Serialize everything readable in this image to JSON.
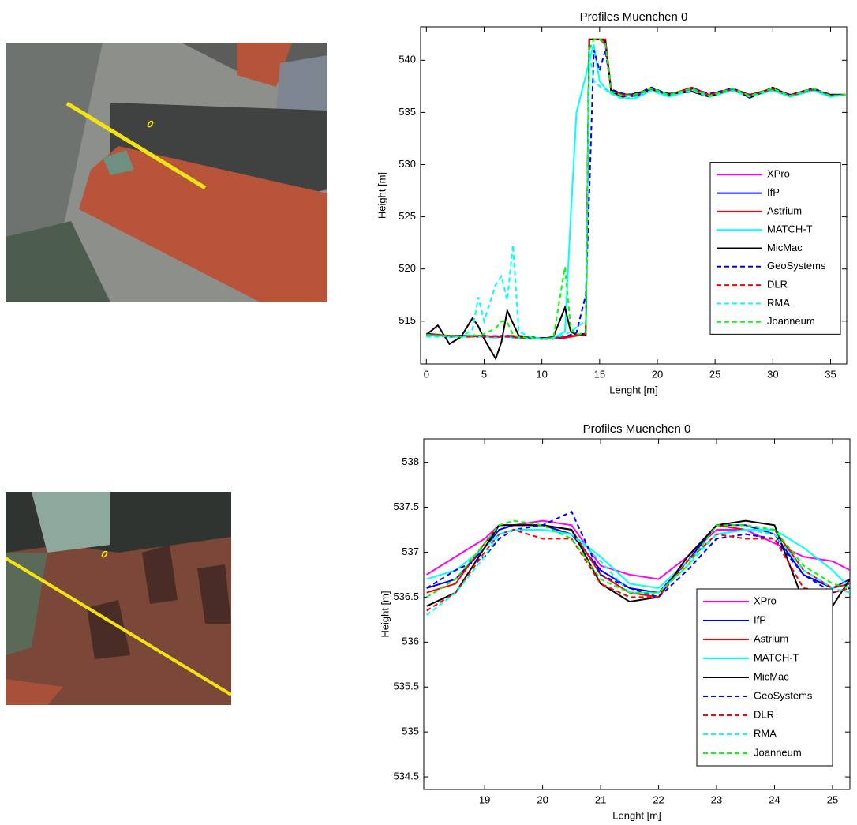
{
  "image_labels": [
    "0",
    "0"
  ],
  "chart_data": [
    {
      "type": "line",
      "title": "Profiles Muenchen 0",
      "xlabel": "Lenght [m]",
      "ylabel": "Height [m]",
      "x": [
        0,
        1,
        2,
        3,
        4,
        4.5,
        5,
        6,
        6.5,
        7,
        7.5,
        8,
        9,
        10,
        11,
        12,
        12.5,
        13,
        13.8,
        14.1,
        14.5,
        15,
        15.5,
        16,
        17,
        18,
        19.5,
        21,
        23,
        24.5,
        26.5,
        28,
        30,
        31.5,
        33.5,
        35,
        36.3
      ],
      "xlim": [
        -0.5,
        36.4
      ],
      "ylim": [
        510.9,
        543.2
      ],
      "xticks": [
        0,
        5,
        10,
        15,
        20,
        25,
        30,
        35
      ],
      "yticks": [
        515,
        520,
        525,
        530,
        535,
        540
      ],
      "grid": false,
      "legend": "right",
      "series": [
        {
          "name": "XPro",
          "color": "#ff00ff",
          "style": "solid",
          "values": [
            513.7,
            513.6,
            513.6,
            513.5,
            513.6,
            513.6,
            513.5,
            513.6,
            513.5,
            513.6,
            513.5,
            513.4,
            513.4,
            513.3,
            513.4,
            513.5,
            513.6,
            513.6,
            513.7,
            542,
            542,
            542,
            541.5,
            537,
            536.7,
            536.6,
            537.3,
            536.7,
            537.3,
            536.7,
            537.3,
            536.6,
            537.3,
            536.6,
            537.3,
            536.6,
            536.7
          ]
        },
        {
          "name": "IfP",
          "color": "#0000ff",
          "style": "solid",
          "values": [
            513.8,
            513.7,
            513.6,
            513.6,
            513.6,
            513.5,
            513.6,
            513.5,
            513.6,
            513.5,
            513.5,
            513.4,
            513.3,
            513.4,
            513.4,
            513.5,
            513.5,
            513.6,
            513.7,
            542,
            542,
            542,
            542,
            537.1,
            536.8,
            536.5,
            537.2,
            536.6,
            537.3,
            536.6,
            537.2,
            536.7,
            537.2,
            536.6,
            537.2,
            536.7,
            536.7
          ]
        },
        {
          "name": "Astrium",
          "color": "#ff0000",
          "style": "solid",
          "values": [
            513.7,
            513.7,
            513.6,
            513.6,
            513.5,
            513.6,
            513.6,
            513.5,
            513.5,
            513.6,
            513.6,
            513.5,
            513.4,
            513.3,
            513.4,
            513.4,
            513.5,
            513.6,
            513.8,
            542,
            542,
            542,
            542,
            537,
            536.8,
            536.6,
            537.3,
            536.7,
            537.4,
            536.7,
            537.3,
            536.7,
            537.3,
            536.7,
            537.3,
            536.6,
            536.7
          ]
        },
        {
          "name": "MATCH-T",
          "color": "#00ffff",
          "style": "solid",
          "values": [
            513.6,
            513.6,
            513.5,
            513.5,
            513.6,
            513.5,
            513.5,
            513.4,
            513.5,
            513.5,
            513.4,
            513.4,
            513.3,
            513.3,
            513.4,
            514,
            525,
            535,
            538.5,
            540,
            541.5,
            538,
            537.3,
            536.8,
            536.4,
            536.3,
            537.1,
            536.5,
            537.1,
            536.5,
            537.1,
            536.5,
            537.1,
            536.5,
            537.1,
            536.5,
            536.7
          ]
        },
        {
          "name": "MicMac",
          "color": "#000000",
          "style": "solid",
          "values": [
            513.7,
            514.6,
            512.8,
            513.5,
            515.3,
            514.5,
            513.3,
            511.4,
            513,
            516,
            514.8,
            513.6,
            513.5,
            513.3,
            513.5,
            516.3,
            514,
            513.7,
            513.8,
            542,
            542,
            542,
            541.8,
            537,
            536.5,
            536.8,
            537.2,
            536.8,
            537,
            536.5,
            537.3,
            536.4,
            537.4,
            536.6,
            537.2,
            536.7,
            536.7
          ]
        },
        {
          "name": "GeoSystems",
          "color": "#0000ff",
          "style": "dashed",
          "values": [
            513.7,
            513.6,
            513.5,
            513.6,
            513.6,
            513.5,
            513.6,
            513.5,
            513.5,
            513.6,
            513.5,
            513.4,
            513.4,
            513.3,
            513.3,
            513.5,
            513.7,
            513.9,
            517.5,
            527,
            541,
            539,
            541,
            537.2,
            536.8,
            536.7,
            537.4,
            536.7,
            537.3,
            536.8,
            537.3,
            536.7,
            537.2,
            536.7,
            537.3,
            536.7,
            536.7
          ]
        },
        {
          "name": "DLR",
          "color": "#ff0000",
          "style": "dashed",
          "values": [
            513.6,
            513.6,
            513.6,
            513.5,
            513.5,
            513.6,
            513.5,
            513.5,
            513.5,
            513.5,
            513.5,
            513.4,
            513.4,
            513.3,
            513.4,
            513.5,
            513.6,
            513.7,
            513.8,
            542,
            542,
            542,
            541.7,
            537,
            536.7,
            536.6,
            537.2,
            536.7,
            537.2,
            536.7,
            537.2,
            536.6,
            537.2,
            536.6,
            537.2,
            536.6,
            536.7
          ]
        },
        {
          "name": "RMA",
          "color": "#00ffff",
          "style": "dashed",
          "values": [
            513.5,
            513.5,
            513.6,
            513.5,
            514.2,
            517.3,
            515,
            518.5,
            519.3,
            517,
            522.3,
            514,
            513.5,
            513.3,
            513.4,
            513.7,
            514,
            514.4,
            515,
            541,
            538,
            537.5,
            537.2,
            536.8,
            536.3,
            536.5,
            537.1,
            536.6,
            537.1,
            536.5,
            537.1,
            536.5,
            537.1,
            536.5,
            537.1,
            536.5,
            536.7
          ]
        },
        {
          "name": "Joanneum",
          "color": "#00ff00",
          "style": "dashed",
          "values": [
            513.7,
            513.6,
            513.6,
            513.5,
            513.7,
            513.6,
            513.8,
            514.3,
            515,
            514.9,
            513.7,
            513.5,
            513.4,
            513.3,
            513.4,
            520.2,
            514.3,
            513.7,
            513.9,
            541,
            542,
            542,
            541.6,
            537,
            536.6,
            536.7,
            537.3,
            536.7,
            537.3,
            536.6,
            537.3,
            536.6,
            537.3,
            536.6,
            537.3,
            536.6,
            536.7
          ]
        }
      ]
    },
    {
      "type": "line",
      "title": "Profiles Muenchen 0",
      "xlabel": "Lenght [m]",
      "ylabel": "Height [m]",
      "x": [
        18,
        18.5,
        19,
        19.25,
        19.5,
        20,
        20.5,
        21,
        21.5,
        22,
        22.5,
        23,
        23.5,
        24,
        24.5,
        25,
        25.3
      ],
      "xlim": [
        17.95,
        25.3
      ],
      "ylim": [
        534.36,
        538.26
      ],
      "xticks": [
        19,
        20,
        21,
        22,
        23,
        24,
        25
      ],
      "yticks": [
        534.5,
        535,
        535.5,
        536,
        536.5,
        537,
        537.5,
        538
      ],
      "grid": false,
      "legend": "lower right",
      "series": [
        {
          "name": "XPro",
          "color": "#ff00ff",
          "style": "solid",
          "values": [
            536.75,
            536.95,
            537.15,
            537.3,
            537.3,
            537.35,
            537.3,
            536.85,
            536.75,
            536.7,
            536.95,
            537.25,
            537.25,
            537.1,
            536.95,
            536.9,
            536.8
          ]
        },
        {
          "name": "IfP",
          "color": "#0000ff",
          "style": "solid",
          "values": [
            536.6,
            536.7,
            537.05,
            537.25,
            537.3,
            537.3,
            537.2,
            536.8,
            536.6,
            536.55,
            536.9,
            537.3,
            537.3,
            537.2,
            536.75,
            536.6,
            536.7
          ]
        },
        {
          "name": "Astrium",
          "color": "#ff0000",
          "style": "solid",
          "values": [
            536.55,
            536.65,
            537.1,
            537.3,
            537.3,
            537.3,
            537.25,
            536.75,
            536.55,
            536.5,
            536.95,
            537.3,
            537.25,
            537.25,
            536.8,
            536.6,
            536.65
          ]
        },
        {
          "name": "MATCH-T",
          "color": "#00ffff",
          "style": "solid",
          "values": [
            536.7,
            536.8,
            537.05,
            537.2,
            537.25,
            537.25,
            537.2,
            536.95,
            536.65,
            536.6,
            536.9,
            537.2,
            537.25,
            537.25,
            537.05,
            536.8,
            536.6
          ]
        },
        {
          "name": "MicMac",
          "color": "#000000",
          "style": "solid",
          "values": [
            536.4,
            536.55,
            537.05,
            537.3,
            537.3,
            537.3,
            537.25,
            536.65,
            536.45,
            536.5,
            536.95,
            537.3,
            537.35,
            537.3,
            536.45,
            536.4,
            536.7
          ]
        },
        {
          "name": "GeoSystems",
          "color": "#0000ff",
          "style": "dashed",
          "values": [
            536.6,
            536.8,
            536.95,
            537.15,
            537.25,
            537.3,
            537.45,
            536.75,
            536.6,
            536.5,
            536.8,
            537.15,
            537.2,
            537.15,
            536.75,
            536.55,
            536.6
          ]
        },
        {
          "name": "DLR",
          "color": "#ff0000",
          "style": "dashed",
          "values": [
            536.35,
            536.55,
            537,
            537.2,
            537.25,
            537.15,
            537.15,
            536.65,
            536.5,
            536.5,
            536.9,
            537.2,
            537.15,
            537.15,
            536.6,
            536.55,
            536.6
          ]
        },
        {
          "name": "RMA",
          "color": "#00ffff",
          "style": "dashed",
          "values": [
            536.3,
            536.55,
            536.95,
            537.2,
            537.25,
            537.25,
            537.2,
            536.9,
            536.55,
            536.55,
            536.85,
            537.2,
            537.25,
            537.2,
            536.8,
            536.6,
            536.55
          ]
        },
        {
          "name": "Joanneum",
          "color": "#00ff00",
          "style": "dashed",
          "values": [
            536.5,
            536.7,
            537.1,
            537.3,
            537.35,
            537.3,
            537.15,
            536.7,
            536.55,
            536.55,
            536.85,
            537.3,
            537.3,
            537.25,
            536.85,
            536.65,
            536.6
          ]
        }
      ]
    }
  ]
}
